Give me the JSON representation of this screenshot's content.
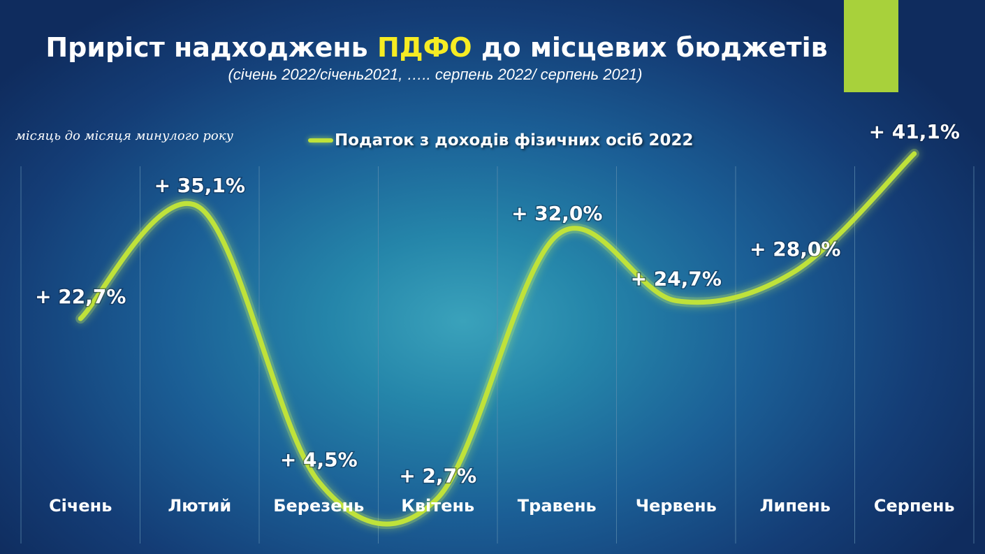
{
  "slide": {
    "title_part1": "Приріст надходжень ",
    "title_highlight": "ПДФО",
    "title_part2": " до місцевих бюджетів",
    "subtitle": "(січень 2022/січень2021, ….. серпень 2022/ серпень 2021)",
    "note": "місяць до місяця минулого року",
    "accent_color": "#a8d13b",
    "highlight_color": "#f6ec23"
  },
  "chart_data": {
    "type": "line",
    "title": "Приріст надходжень ПДФО до місцевих бюджетів",
    "subtitle": "(січень 2022/січень2021, ….. серпень 2022/ серпень 2021)",
    "categories": [
      "Січень",
      "Лютий",
      "Березень",
      "Квітень",
      "Травень",
      "Червень",
      "Липень",
      "Серпень"
    ],
    "series": [
      {
        "name": "Податок з доходів фізичних осіб 2022",
        "values": [
          22.7,
          35.1,
          4.5,
          2.7,
          32.0,
          24.7,
          28.0,
          41.1
        ],
        "labels": [
          "+ 22,7%",
          "+ 35,1%",
          "+ 4,5%",
          "+ 2,7%",
          "+ 32,0%",
          "+ 24,7%",
          "+ 28,0%",
          "+ 41,1%"
        ],
        "color": "#bfe23a",
        "smooth": true
      }
    ],
    "legend": "top-center",
    "grid": "vertical",
    "grid_color": "#5f8fb0",
    "ylim": [
      -8,
      45
    ]
  }
}
